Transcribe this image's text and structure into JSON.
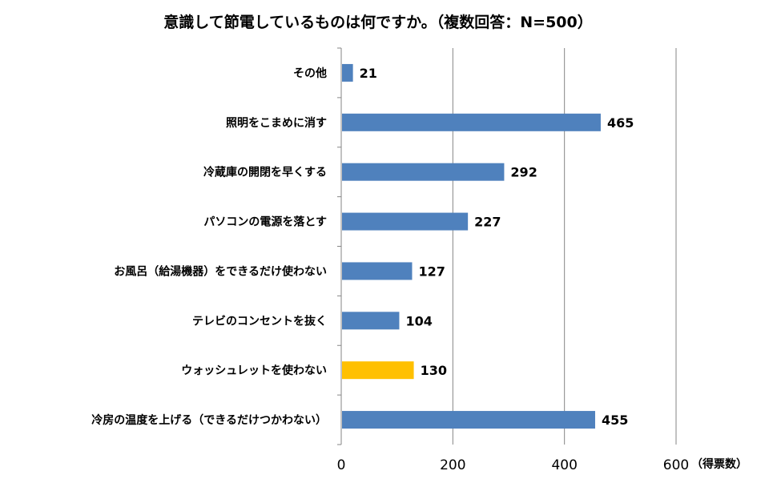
{
  "chart_data": {
    "type": "bar",
    "orientation": "horizontal",
    "title": "意識して節電しているものは何ですか。（複数回答：N=500）",
    "unit_label": "（得票数）",
    "categories": [
      "その他",
      "照明をこまめに消す",
      "冷蔵庫の開閉を早くする",
      "パソコンの電源を落とす",
      "お風呂（給湯機器）をできるだけ使わない",
      "テレビのコンセントを抜く",
      "ウォッシュレットを使わない",
      "冷房の温度を上げる（できるだけつかわない）"
    ],
    "values": [
      21,
      465,
      292,
      227,
      127,
      104,
      130,
      455
    ],
    "xlim": [
      0,
      600
    ],
    "x_ticks": [
      0,
      200,
      400,
      600
    ],
    "grid": true,
    "legend": "none",
    "colors": {
      "bar": "#4f81bd",
      "highlight": "#ffc000",
      "grid": "#868686"
    },
    "highlight_index": 6
  }
}
